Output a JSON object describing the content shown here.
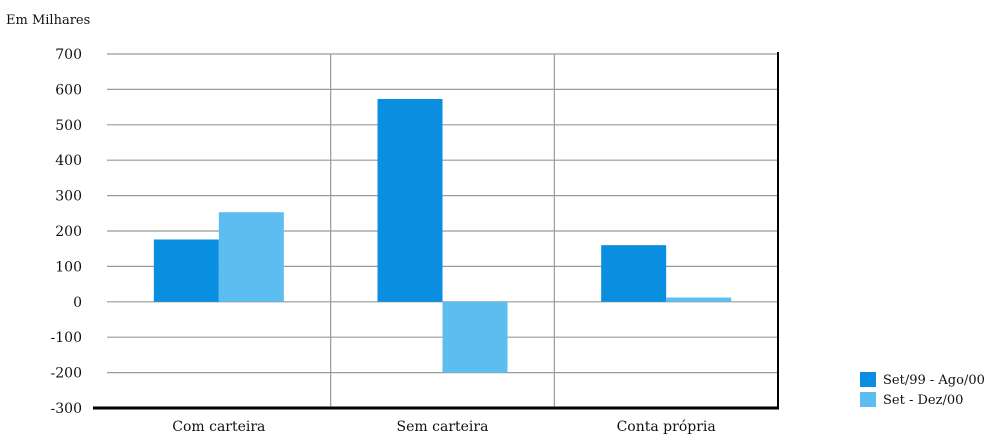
{
  "chart_data": {
    "type": "bar",
    "ylabel": "Em Milhares",
    "ylim": [
      -300,
      700
    ],
    "yticks": [
      700,
      600,
      500,
      400,
      300,
      200,
      100,
      0,
      -100,
      -200,
      -300
    ],
    "categories": [
      "Com carteira",
      "Sem carteira",
      "Conta própria"
    ],
    "series": [
      {
        "name": "Set/99 - Ago/00",
        "color": "#0a8ee0",
        "values": [
          176,
          573,
          160
        ]
      },
      {
        "name": "Set - Dez/00",
        "color": "#5cbdf0",
        "values": [
          253,
          -200,
          12
        ]
      }
    ],
    "grid": true,
    "legend": "bottom-right"
  }
}
